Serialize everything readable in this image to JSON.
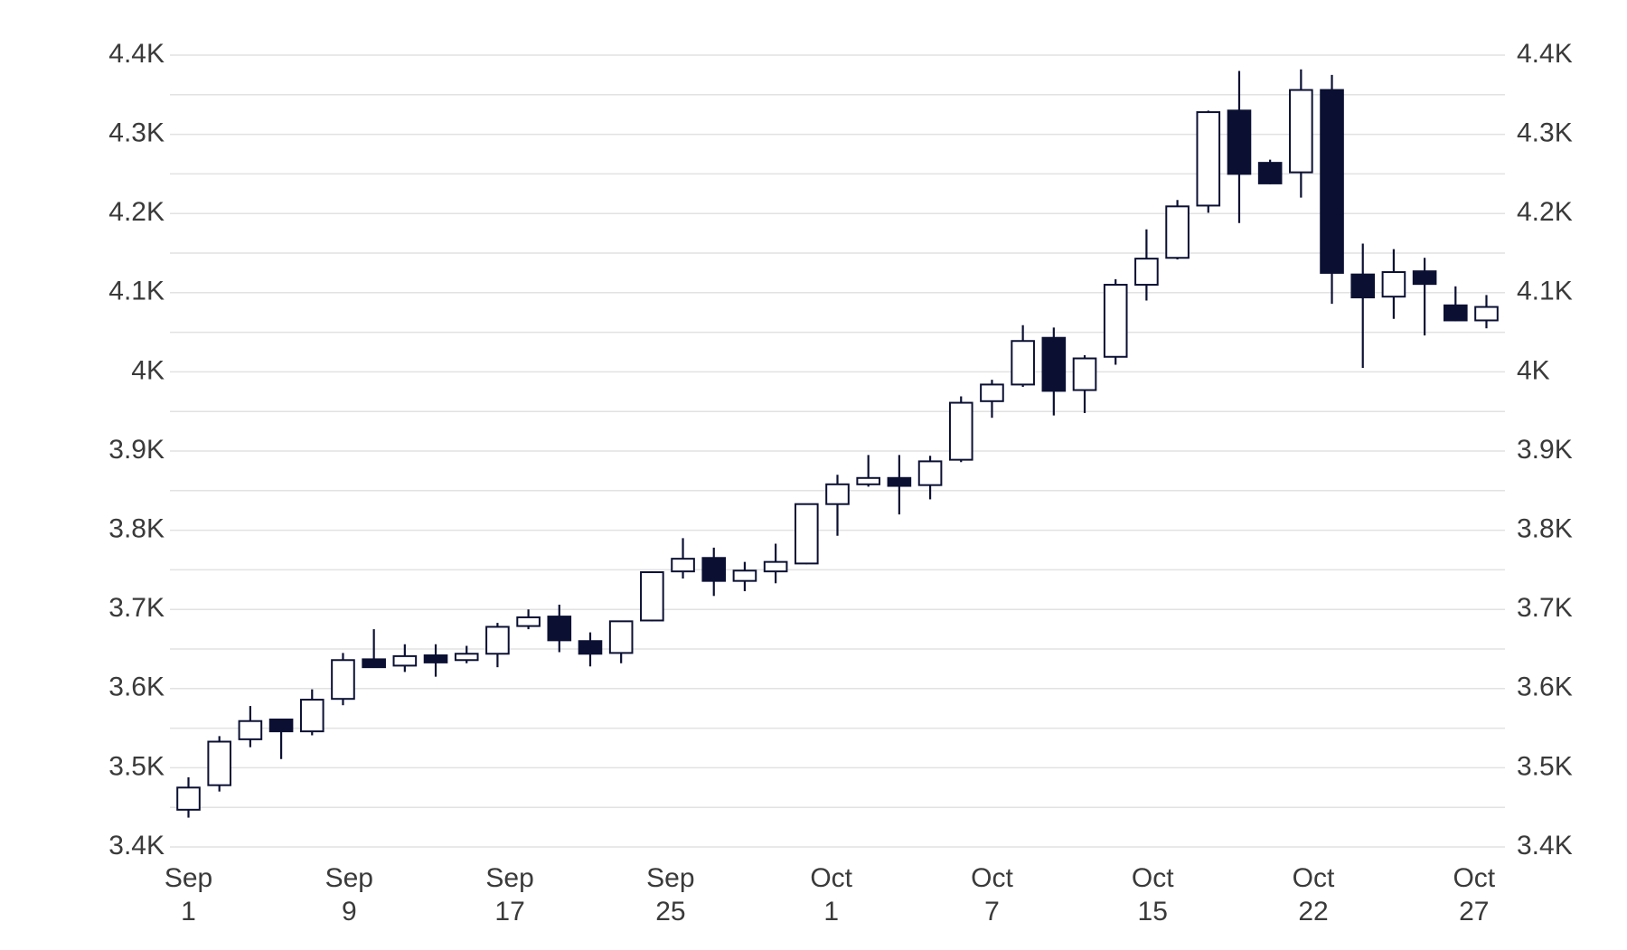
{
  "chart_data": {
    "type": "candlestick",
    "x": [
      0,
      1,
      2,
      3,
      4,
      5,
      6,
      7,
      8,
      9,
      10,
      11,
      12,
      13,
      14,
      15,
      16,
      17,
      18,
      19,
      20,
      21,
      22,
      23,
      24,
      25,
      26,
      27,
      28,
      29,
      30,
      31,
      32,
      33,
      34,
      35,
      36,
      37,
      38,
      39,
      40,
      41,
      42
    ],
    "open": [
      3447,
      3478,
      3536,
      3561,
      3546,
      3587,
      3637,
      3629,
      3642,
      3636,
      3644,
      3679,
      3691,
      3660,
      3645,
      3686,
      3748,
      3765,
      3736,
      3748,
      3758,
      3833,
      3858,
      3866,
      3857,
      3889,
      3963,
      3984,
      4043,
      3977,
      4019,
      4110,
      4144,
      4210,
      4330,
      4264,
      4252,
      4356,
      4123,
      4095,
      4127,
      4084,
      4065
    ],
    "high": [
      3488,
      3540,
      3578,
      3561,
      3599,
      3645,
      3675,
      3656,
      3656,
      3654,
      3683,
      3700,
      3706,
      3671,
      3685,
      3748,
      3790,
      3778,
      3760,
      3783,
      3833,
      3870,
      3895,
      3895,
      3894,
      3969,
      3990,
      4059,
      4056,
      4021,
      4117,
      4180,
      4217,
      4330,
      4380,
      4268,
      4382,
      4375,
      4162,
      4155,
      4144,
      4108,
      4097
    ],
    "low": [
      3437,
      3470,
      3526,
      3511,
      3541,
      3579,
      3627,
      3621,
      3615,
      3632,
      3627,
      3675,
      3646,
      3628,
      3632,
      3685,
      3739,
      3717,
      3723,
      3733,
      3757,
      3793,
      3855,
      3820,
      3839,
      3886,
      3942,
      3981,
      3945,
      3948,
      4009,
      4090,
      4142,
      4201,
      4188,
      4237,
      4220,
      4086,
      4005,
      4067,
      4046,
      4064,
      4055
    ],
    "close": [
      3475,
      3533,
      3559,
      3546,
      3586,
      3636,
      3627,
      3641,
      3633,
      3644,
      3678,
      3690,
      3661,
      3644,
      3685,
      3747,
      3764,
      3736,
      3749,
      3760,
      3833,
      3858,
      3866,
      3856,
      3887,
      3961,
      3984,
      4039,
      3976,
      4017,
      4110,
      4143,
      4209,
      4328,
      4250,
      4238,
      4356,
      4125,
      4094,
      4126,
      4111,
      4065,
      4082
    ],
    "up_color": "#ffffff",
    "down_color": "#0b1033",
    "outline_color": "#0b1033",
    "xlim": [
      -0.6,
      42.6
    ],
    "xticks": [
      {
        "value": 0,
        "label": "Sep 1"
      },
      {
        "value": 5.2,
        "label": "Sep 9"
      },
      {
        "value": 10.4,
        "label": "Sep 17"
      },
      {
        "value": 15.6,
        "label": "Sep 25"
      },
      {
        "value": 20.8,
        "label": "Oct 1"
      },
      {
        "value": 26,
        "label": "Oct 7"
      },
      {
        "value": 31.2,
        "label": "Oct 15"
      },
      {
        "value": 36.4,
        "label": "Oct 22"
      },
      {
        "value": 41.6,
        "label": "Oct 27"
      }
    ],
    "ylim": [
      3400,
      4400
    ],
    "yticks": [
      {
        "value": 3400,
        "label": "3.4K"
      },
      {
        "value": 3500,
        "label": "3.5K"
      },
      {
        "value": 3600,
        "label": "3.6K"
      },
      {
        "value": 3700,
        "label": "3.7K"
      },
      {
        "value": 3800,
        "label": "3.8K"
      },
      {
        "value": 3900,
        "label": "3.9K"
      },
      {
        "value": 4000,
        "label": "4K"
      },
      {
        "value": 4100,
        "label": "4.1K"
      },
      {
        "value": 4200,
        "label": "4.2K"
      },
      {
        "value": 4300,
        "label": "4.3K"
      },
      {
        "value": 4400,
        "label": "4.4K"
      }
    ],
    "y2lim": [
      3400,
      4400
    ],
    "y2ticks": [
      {
        "value": 3400,
        "label": "3.4K"
      },
      {
        "value": 3500,
        "label": "3.5K"
      },
      {
        "value": 3600,
        "label": "3.6K"
      },
      {
        "value": 3700,
        "label": "3.7K"
      },
      {
        "value": 3800,
        "label": "3.8K"
      },
      {
        "value": 3900,
        "label": "3.9K"
      },
      {
        "value": 4000,
        "label": "4K"
      },
      {
        "value": 4100,
        "label": "4.1K"
      },
      {
        "value": 4200,
        "label": "4.2K"
      },
      {
        "value": 4300,
        "label": "4.3K"
      },
      {
        "value": 4400,
        "label": "4.4K"
      }
    ],
    "y_minor_ticks": [
      3450,
      3550,
      3650,
      3750,
      3850,
      3950,
      4050,
      4150,
      4250,
      4350
    ],
    "grid": true
  }
}
